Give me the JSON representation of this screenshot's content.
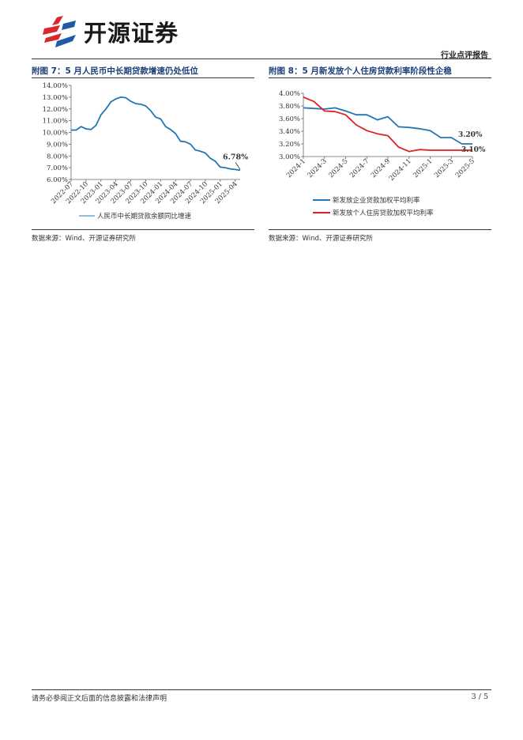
{
  "header": {
    "logo_text": "开源证券",
    "report_type": "行业点评报告",
    "brand_colors": {
      "red": "#d9272e",
      "blue": "#1f5aa6"
    }
  },
  "figures": [
    {
      "title": "附图 7：5 月人民币中长期贷款增速仍处低位",
      "source": "数据来源：Wind、开源证券研究所"
    },
    {
      "title": "附图 8：5 月新发放个人住房贷款利率阶段性企稳",
      "source": "数据来源：Wind、开源证券研究所"
    }
  ],
  "chart_data": [
    {
      "type": "line",
      "title": "附图 7：5 月人民币中长期贷款增速仍处低位",
      "x": [
        "2022-07",
        "2022-08",
        "2022-09",
        "2022-10",
        "2022-11",
        "2022-12",
        "2023-01",
        "2023-02",
        "2023-03",
        "2023-04",
        "2023-05",
        "2023-06",
        "2023-07",
        "2023-08",
        "2023-09",
        "2023-10",
        "2023-11",
        "2023-12",
        "2024-01",
        "2024-02",
        "2024-03",
        "2024-04",
        "2024-05",
        "2024-06",
        "2024-07",
        "2024-08",
        "2024-09",
        "2024-10",
        "2024-11",
        "2024-12",
        "2025-01",
        "2025-02",
        "2025-03",
        "2025-04",
        "2025-05"
      ],
      "x_tick_labels": [
        "2022-07",
        "2022-10",
        "2023-01",
        "2023-04",
        "2023-07",
        "2023-10",
        "2024-01",
        "2024-04",
        "2024-07",
        "2024-10",
        "2025-01",
        "2025-04"
      ],
      "series": [
        {
          "name": "人民币中长期贷款余额同比增速",
          "color": "#2277b3",
          "values": [
            10.2,
            10.2,
            10.5,
            10.3,
            10.25,
            10.6,
            11.5,
            12.0,
            12.6,
            12.85,
            13.0,
            12.95,
            12.65,
            12.45,
            12.4,
            12.25,
            11.85,
            11.3,
            11.15,
            10.5,
            10.25,
            9.9,
            9.25,
            9.2,
            9.0,
            8.5,
            8.4,
            8.25,
            7.8,
            7.55,
            7.05,
            7.0,
            6.9,
            6.85,
            6.78
          ]
        }
      ],
      "ylim": [
        6.0,
        14.0
      ],
      "y_tick_labels": [
        "14.00%",
        "13.00%",
        "12.00%",
        "11.00%",
        "10.00%",
        "9.00%",
        "8.00%",
        "7.00%",
        "6.00%"
      ],
      "annotation": "6.78%",
      "legend_position": "bottom"
    },
    {
      "type": "line",
      "title": "附图 8：5 月新发放个人住房贷款利率阶段性企稳",
      "x": [
        "2024-1",
        "2024-2",
        "2024-3",
        "2024-4",
        "2024-5",
        "2024-6",
        "2024-7",
        "2024-8",
        "2024-9",
        "2024-10",
        "2024-11",
        "2024-12",
        "2025-1",
        "2025-2",
        "2025-3",
        "2025-4",
        "2025-5"
      ],
      "x_tick_labels": [
        "2024-1",
        "2024-3",
        "2024-5",
        "2024-7",
        "2024-9",
        "2024-11",
        "2025-1",
        "2025-3",
        "2025-5"
      ],
      "series": [
        {
          "name": "新发放企业贷款加权平均利率",
          "color": "#2277b3",
          "values": [
            3.77,
            3.76,
            3.75,
            3.77,
            3.72,
            3.66,
            3.66,
            3.58,
            3.63,
            3.47,
            3.46,
            3.44,
            3.41,
            3.3,
            3.3,
            3.2,
            3.2
          ]
        },
        {
          "name": "新发放个人住房贷款加权平均利率",
          "color": "#e02020",
          "values": [
            3.94,
            3.87,
            3.72,
            3.71,
            3.66,
            3.5,
            3.41,
            3.36,
            3.33,
            3.15,
            3.08,
            3.11,
            3.1,
            3.1,
            3.1,
            3.1,
            3.1
          ]
        }
      ],
      "ylim": [
        3.0,
        4.0
      ],
      "y_tick_labels": [
        "4.00%",
        "3.80%",
        "3.60%",
        "3.40%",
        "3.20%",
        "3.00%"
      ],
      "annotations": [
        "3.20%",
        "3.10%"
      ],
      "legend_position": "bottom"
    }
  ],
  "footer": {
    "disclaimer": "请务必参阅正文后面的信息披露和法律声明",
    "page": "3 / 5"
  }
}
